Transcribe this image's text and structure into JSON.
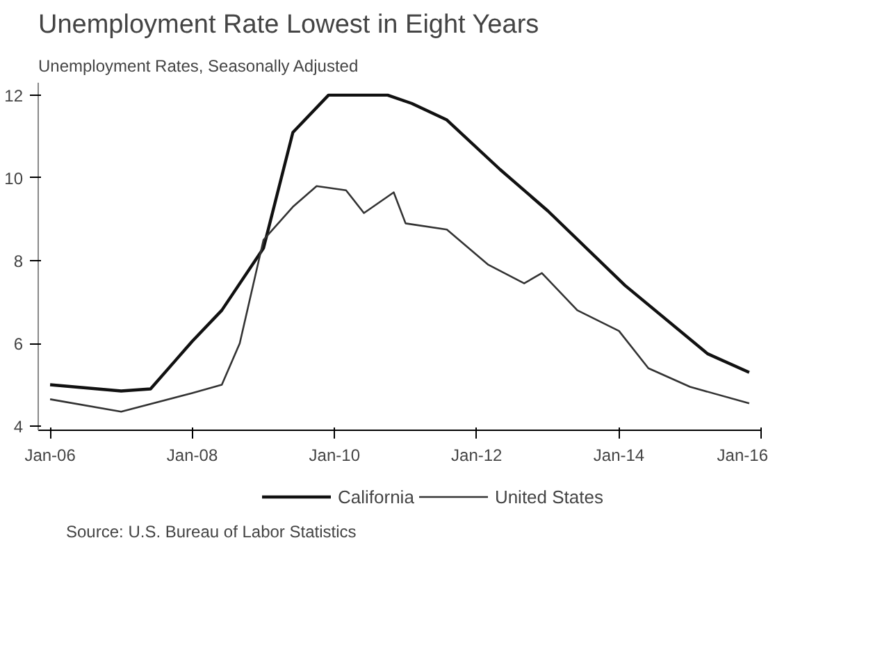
{
  "chart_data": {
    "type": "line",
    "title": "Unemployment Rate Lowest in Eight Years",
    "subtitle": "Unemployment Rates, Seasonally Adjusted",
    "annotations": [
      "Source: U.S. Bureau of Labor Statistics"
    ],
    "xlim": [
      "2005-11",
      "2016-01"
    ],
    "ylim": [
      3.9,
      12.3
    ],
    "xticks": [
      {
        "value": "2006-01",
        "label": "Jan-06"
      },
      {
        "value": "2008-01",
        "label": "Jan-08"
      },
      {
        "value": "2010-01",
        "label": "Jan-10"
      },
      {
        "value": "2012-01",
        "label": "Jan-12"
      },
      {
        "value": "2014-01",
        "label": "Jan-14"
      },
      {
        "value": "2016-01",
        "label": "Jan-16"
      }
    ],
    "yticks": [
      4,
      6,
      8,
      10,
      12
    ],
    "legend": "bottom",
    "grid": false,
    "series": [
      {
        "name": "California",
        "color": "#111111",
        "x": [
          "2006-01",
          "2007-01",
          "2007-06",
          "2008-01",
          "2008-06",
          "2009-01",
          "2009-06",
          "2009-12",
          "2010-06",
          "2010-10",
          "2011-02",
          "2011-08",
          "2012-05",
          "2013-01",
          "2014-02",
          "2015-04",
          "2015-11"
        ],
        "values": [
          5.0,
          4.85,
          4.9,
          6.05,
          6.8,
          8.3,
          11.1,
          12.0,
          12.0,
          12.0,
          11.8,
          11.4,
          10.2,
          9.2,
          7.4,
          5.75,
          5.3
        ]
      },
      {
        "name": "United States",
        "color": "#333333",
        "x": [
          "2006-01",
          "2007-01",
          "2008-01",
          "2008-06",
          "2008-09",
          "2009-01",
          "2009-06",
          "2009-10",
          "2010-03",
          "2010-06",
          "2010-11",
          "2011-01",
          "2011-08",
          "2012-03",
          "2012-09",
          "2012-12",
          "2013-06",
          "2014-01",
          "2014-06",
          "2015-01",
          "2015-11"
        ],
        "values": [
          4.65,
          4.35,
          4.8,
          5.0,
          6.0,
          8.5,
          9.3,
          9.8,
          9.7,
          9.15,
          9.65,
          8.9,
          8.75,
          7.9,
          7.45,
          7.7,
          6.8,
          6.3,
          5.4,
          4.95,
          4.55
        ]
      }
    ]
  }
}
